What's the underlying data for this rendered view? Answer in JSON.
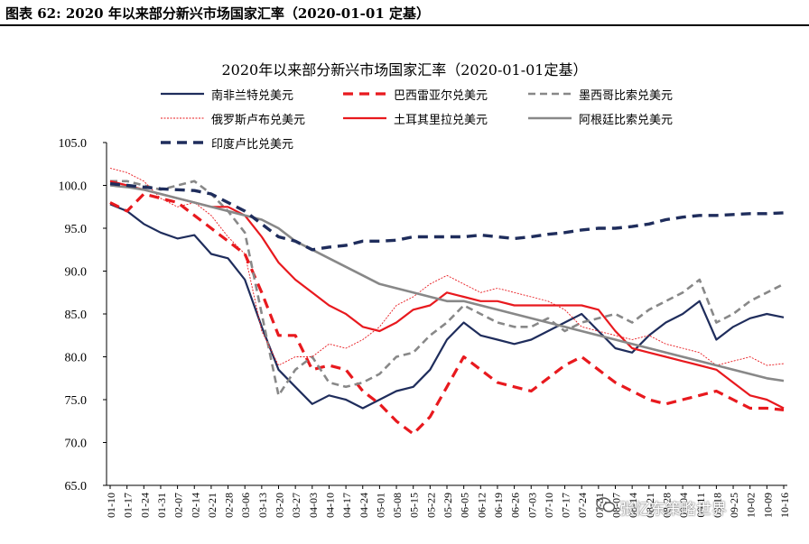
{
  "figure": {
    "caption": "图表 62:  2020 年以来部分新兴市场国家汇率（2020-01-01 定基）"
  },
  "watermark": {
    "text": "张忆东策略世界",
    "icon": "wechat-icon"
  },
  "chart_data": {
    "type": "line",
    "title": "2020年以来部分新兴市场国家汇率（2020-01-01定基）",
    "xlabel": "",
    "ylabel": "",
    "ylim": [
      65.0,
      105.0
    ],
    "yticks": [
      "105.0",
      "100.0",
      "95.0",
      "90.0",
      "85.0",
      "80.0",
      "75.0",
      "70.0",
      "65.0"
    ],
    "grid": false,
    "legend_position": "top",
    "categories": [
      "01-10",
      "01-17",
      "01-24",
      "01-31",
      "02-07",
      "02-14",
      "02-21",
      "02-28",
      "03-06",
      "03-13",
      "03-20",
      "03-27",
      "04-03",
      "04-10",
      "04-17",
      "04-24",
      "05-01",
      "05-08",
      "05-15",
      "05-22",
      "05-29",
      "06-05",
      "06-12",
      "06-19",
      "06-26",
      "07-03",
      "07-10",
      "07-17",
      "07-24",
      "07-31",
      "08-07",
      "08-14",
      "08-21",
      "08-28",
      "09-04",
      "09-11",
      "09-18",
      "09-25",
      "10-02",
      "10-09",
      "10-16"
    ],
    "series": [
      {
        "name": "南非兰特兑美元",
        "color": "#1f2d5c",
        "style": "solid",
        "width": 2.2,
        "values": [
          97.8,
          97.0,
          95.5,
          94.5,
          93.8,
          94.2,
          92.0,
          91.5,
          89.0,
          83.5,
          78.5,
          76.5,
          74.5,
          75.5,
          75.0,
          74.0,
          75.0,
          76.0,
          76.5,
          78.5,
          82.0,
          84.0,
          82.5,
          82.0,
          81.5,
          82.0,
          83.0,
          84.0,
          85.0,
          83.0,
          81.0,
          80.5,
          82.5,
          84.0,
          85.0,
          86.5,
          82.0,
          83.5,
          84.5,
          85.0,
          84.6
        ]
      },
      {
        "name": "巴西雷亚尔兑美元",
        "color": "#e8191e",
        "style": "dashed",
        "width": 3.2,
        "values": [
          98.0,
          97.0,
          99.0,
          98.5,
          98.0,
          96.5,
          95.0,
          93.5,
          92.0,
          87.5,
          82.5,
          82.5,
          78.5,
          79.0,
          78.5,
          76.0,
          74.5,
          72.5,
          71.0,
          73.0,
          76.5,
          80.0,
          78.5,
          77.0,
          76.5,
          76.0,
          77.5,
          79.0,
          80.0,
          78.5,
          77.0,
          76.0,
          75.0,
          74.5,
          75.0,
          75.5,
          76.0,
          75.0,
          74.0,
          74.0,
          73.8
        ]
      },
      {
        "name": "墨西哥比索兑美元",
        "color": "#888888",
        "style": "dashed",
        "width": 2.6,
        "values": [
          100.5,
          100.5,
          100.0,
          99.5,
          100.0,
          100.5,
          99.0,
          97.0,
          94.5,
          85.0,
          75.5,
          78.5,
          80.0,
          77.0,
          76.5,
          77.0,
          78.0,
          80.0,
          80.5,
          82.5,
          84.0,
          86.0,
          85.0,
          84.0,
          83.5,
          83.5,
          84.5,
          83.0,
          84.0,
          84.5,
          85.0,
          84.0,
          85.5,
          86.5,
          87.5,
          89.0,
          84.0,
          85.0,
          86.5,
          87.5,
          88.5
        ]
      },
      {
        "name": "俄罗斯卢布兑美元",
        "color": "#e8191e",
        "style": "thin",
        "width": 0.9,
        "values": [
          102.0,
          101.5,
          100.5,
          98.5,
          97.5,
          98.0,
          96.5,
          94.0,
          92.0,
          83.0,
          79.0,
          80.0,
          80.0,
          81.5,
          81.0,
          82.0,
          83.5,
          86.0,
          87.0,
          88.5,
          89.5,
          88.5,
          87.5,
          88.0,
          87.5,
          87.0,
          86.5,
          85.5,
          83.5,
          83.0,
          82.5,
          82.0,
          82.5,
          81.5,
          81.0,
          80.5,
          79.0,
          79.5,
          80.0,
          79.0,
          79.2
        ]
      },
      {
        "name": "土耳其里拉兑美元",
        "color": "#e8191e",
        "style": "solid",
        "width": 2.2,
        "values": [
          100.5,
          100.0,
          99.5,
          99.0,
          98.5,
          98.0,
          97.5,
          97.5,
          96.5,
          94.0,
          91.0,
          89.0,
          87.5,
          86.0,
          85.0,
          83.5,
          83.0,
          84.0,
          85.5,
          86.0,
          87.5,
          87.0,
          86.5,
          86.5,
          86.0,
          86.0,
          86.0,
          86.0,
          86.0,
          85.5,
          83.0,
          81.0,
          80.5,
          80.0,
          79.5,
          79.0,
          78.5,
          77.0,
          75.5,
          75.0,
          74.0
        ]
      },
      {
        "name": "阿根廷比索兑美元",
        "color": "#888888",
        "style": "solid",
        "width": 2.6,
        "values": [
          100.0,
          99.8,
          99.5,
          99.0,
          98.5,
          98.0,
          97.5,
          97.0,
          96.5,
          96.0,
          95.0,
          93.5,
          92.5,
          91.5,
          90.5,
          89.5,
          88.5,
          88.0,
          87.5,
          87.0,
          86.5,
          86.5,
          86.0,
          85.5,
          85.0,
          84.5,
          84.0,
          83.5,
          83.0,
          82.5,
          82.0,
          81.5,
          81.0,
          80.5,
          80.0,
          79.5,
          79.0,
          78.5,
          78.0,
          77.5,
          77.2
        ]
      },
      {
        "name": "印度卢比兑美元",
        "color": "#1f2d5c",
        "style": "dashed",
        "width": 3.4,
        "values": [
          100.2,
          100.0,
          99.8,
          99.6,
          99.5,
          99.4,
          99.0,
          98.0,
          97.0,
          95.5,
          94.0,
          93.5,
          92.5,
          92.8,
          93.0,
          93.5,
          93.5,
          93.6,
          94.0,
          94.0,
          94.0,
          94.0,
          94.2,
          94.0,
          93.8,
          94.0,
          94.3,
          94.5,
          94.8,
          95.0,
          95.0,
          95.2,
          95.5,
          96.0,
          96.3,
          96.5,
          96.5,
          96.6,
          96.7,
          96.7,
          96.8
        ]
      }
    ]
  }
}
